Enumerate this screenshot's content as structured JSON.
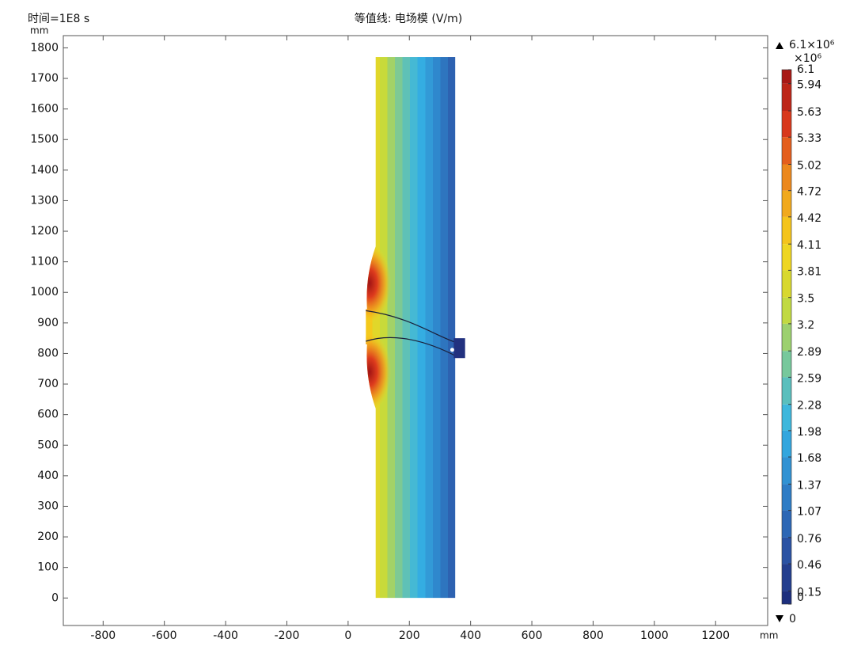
{
  "chart_data": {
    "type": "contour",
    "title": "等值线: 电场模 (V/m)",
    "time_label": "时间=1E8 s",
    "x_unit": "mm",
    "y_unit": "mm",
    "xlim": [
      -930,
      1370
    ],
    "ylim": [
      -90,
      1840
    ],
    "xticks": [
      -800,
      -600,
      -400,
      -200,
      0,
      200,
      400,
      600,
      800,
      1000,
      1200
    ],
    "yticks": [
      0,
      100,
      200,
      300,
      400,
      500,
      600,
      700,
      800,
      900,
      1000,
      1100,
      1200,
      1300,
      1400,
      1500,
      1600,
      1700,
      1800
    ],
    "colorbar": {
      "clim": [
        0,
        6.1
      ],
      "ticks": [
        0,
        0.15,
        0.46,
        0.76,
        1.07,
        1.37,
        1.68,
        1.98,
        2.28,
        2.59,
        2.89,
        3.2,
        3.5,
        3.81,
        4.11,
        4.42,
        4.72,
        5.02,
        5.33,
        5.63,
        5.94,
        6.1
      ],
      "multiplier_label": "×10⁶",
      "max_label": "6.1×10⁶",
      "min_label": "0",
      "colormap": [
        "#1b2a78",
        "#2c56a8",
        "#2f86cc",
        "#35b4e6",
        "#73c7a0",
        "#c6da3c",
        "#f5d51c",
        "#f09a1d",
        "#dd3b1d",
        "#a11414"
      ]
    }
  }
}
